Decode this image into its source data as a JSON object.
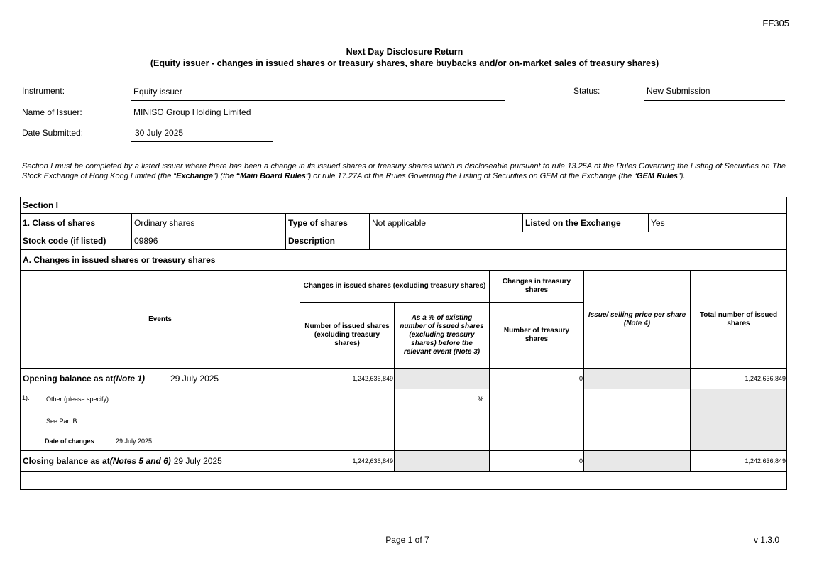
{
  "form_code": "FF305",
  "title": "Next Day Disclosure Return",
  "subtitle": "(Equity issuer - changes in issued shares or treasury shares, share buybacks and/or on-market sales of treasury shares)",
  "fields": {
    "instrument_label": "Instrument:",
    "instrument_value": "Equity issuer",
    "status_label": "Status:",
    "status_value": "New Submission",
    "issuer_label": "Name of Issuer:",
    "issuer_value": "MINISO Group Holding Limited",
    "date_label": "Date Submitted:",
    "date_value": "30 July 2025"
  },
  "intro": {
    "p1": "Section I must be completed by a listed issuer where there has been a change in its issued shares or treasury shares which is discloseable pursuant to rule 13.25A of the Rules Governing the Listing of Securities on The Stock Exchange of Hong Kong Limited (the “",
    "exchange": "Exchange",
    "p2": "”) (the ",
    "main_board": "“Main Board Rules",
    "p3": "”) or rule 17.27A of the Rules Governing the Listing of Securities on GEM of the Exchange (the “",
    "gem": "GEM Rules",
    "p4": "”)."
  },
  "section": {
    "title": "Section I",
    "class_label": "1. Class of shares",
    "class_value": "Ordinary shares",
    "type_label": "Type of shares",
    "type_value": "Not applicable",
    "listed_label": "Listed on the Exchange",
    "listed_value": "Yes",
    "stock_label": "Stock code (if listed)",
    "stock_value": "09896",
    "desc_label": "Description",
    "desc_value": "",
    "a_title": "A. Changes in issued shares or treasury shares"
  },
  "table": {
    "h_events": "Events",
    "h_changes_issued": "Changes in issued shares (excluding treasury shares)",
    "h_changes_treasury": "Changes in treasury shares",
    "h_num_issued": "Number of issued shares (excluding treasury shares)",
    "h_pct": "As a % of existing number of issued shares (excluding treasury shares) before the relevant event (Note 3)",
    "h_num_treasury": "Number of treasury shares",
    "h_price": "Issue/ selling price per share (Note 4)",
    "h_total": "Total number of issued shares",
    "opening": {
      "label": "Opening balance as at ",
      "note": "(Note 1)",
      "date": "29 July 2025",
      "issued": "1,242,636,849",
      "treasury": "0",
      "total": "1,242,636,849"
    },
    "event": {
      "index": "1).",
      "type": "Other (please specify)",
      "detail": "See Part B",
      "pct": "%",
      "date_label": "Date of changes",
      "date": "29 July 2025"
    },
    "closing": {
      "label": "Closing balance as at ",
      "note": "(Notes 5 and 6)",
      "date": "29 July 2025",
      "issued": "1,242,636,849",
      "treasury": "0",
      "total": "1,242,636,849"
    }
  },
  "footer": {
    "page": "Page 1 of 7",
    "version": "v 1.3.0"
  }
}
